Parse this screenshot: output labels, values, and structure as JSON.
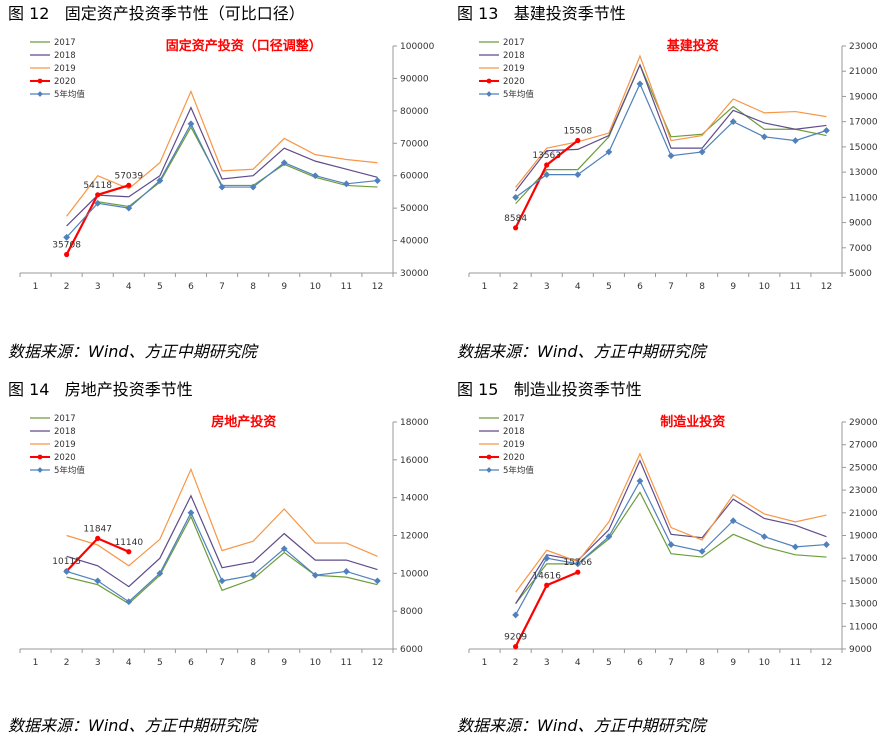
{
  "colors": {
    "2017": "#6e9c3c",
    "2018": "#5f4b8b",
    "2019": "#f79646",
    "2020": "#ff0000",
    "avg": "#4f81bd"
  },
  "source_text": "数据来源：Wind、方正中期研究院",
  "panels": [
    {
      "fig_title": "图 12   固定资产投资季节性（可比口径）",
      "chart_data": {
        "type": "line",
        "title": "固定资产投资（口径调整）",
        "categories": [
          "1",
          "2",
          "3",
          "4",
          "5",
          "6",
          "7",
          "8",
          "9",
          "10",
          "11",
          "12"
        ],
        "ylim": [
          30000,
          100000
        ],
        "yticks": [
          30000,
          40000,
          50000,
          60000,
          70000,
          80000,
          90000,
          100000
        ],
        "legend": [
          "2017",
          "2018",
          "2019",
          "2020",
          "5年均值"
        ],
        "series": [
          {
            "name": "2017",
            "key": "2017",
            "values": [
              null,
              null,
              52000,
              50500,
              58000,
              75000,
              57000,
              57000,
              63500,
              59500,
              57000,
              56500
            ]
          },
          {
            "name": "2018",
            "key": "2018",
            "values": [
              null,
              44500,
              54000,
              53500,
              60000,
              81000,
              59000,
              60000,
              68500,
              64500,
              62000,
              59500
            ]
          },
          {
            "name": "2019",
            "key": "2019",
            "values": [
              null,
              47500,
              60000,
              56000,
              64000,
              86000,
              61500,
              62000,
              71500,
              66500,
              65000,
              64000
            ]
          },
          {
            "name": "2020",
            "key": "2020",
            "values": [
              null,
              35708,
              54118,
              57039,
              null,
              null,
              null,
              null,
              null,
              null,
              null,
              null
            ]
          },
          {
            "name": "5年均值",
            "key": "avg",
            "values": [
              null,
              41000,
              51500,
              50000,
              58500,
              76000,
              56500,
              56500,
              64000,
              60000,
              57500,
              58500
            ]
          }
        ],
        "data_labels": [
          {
            "x": "2",
            "y": 35708,
            "text": "35708"
          },
          {
            "x": "3",
            "y": 54118,
            "text": "54118"
          },
          {
            "x": "4",
            "y": 57039,
            "text": "57039"
          }
        ]
      }
    },
    {
      "fig_title": "图 13   基建投资季节性",
      "chart_data": {
        "type": "line",
        "title": "基建投资",
        "categories": [
          "1",
          "2",
          "3",
          "4",
          "5",
          "6",
          "7",
          "8",
          "9",
          "10",
          "11",
          "12"
        ],
        "ylim": [
          5000,
          23000
        ],
        "yticks": [
          5000,
          7000,
          9000,
          11000,
          13000,
          15000,
          17000,
          19000,
          21000,
          23000
        ],
        "legend": [
          "2017",
          "2018",
          "2019",
          "2020",
          "5年均值"
        ],
        "series": [
          {
            "name": "2017",
            "key": "2017",
            "values": [
              null,
              10500,
              13200,
              13200,
              15800,
              21500,
              15800,
              16000,
              18200,
              16400,
              16400,
              15900
            ]
          },
          {
            "name": "2018",
            "key": "2018",
            "values": [
              null,
              11500,
              14700,
              14800,
              15900,
              21500,
              14900,
              14900,
              17900,
              16900,
              16400,
              16700
            ]
          },
          {
            "name": "2019",
            "key": "2019",
            "values": [
              null,
              11800,
              14900,
              15400,
              16100,
              22200,
              15500,
              15900,
              18800,
              17700,
              17800,
              17400
            ]
          },
          {
            "name": "2020",
            "key": "2020",
            "values": [
              null,
              8584,
              13563,
              15508,
              null,
              null,
              null,
              null,
              null,
              null,
              null,
              null
            ]
          },
          {
            "name": "5年均值",
            "key": "avg",
            "values": [
              null,
              11000,
              12800,
              12800,
              14600,
              20000,
              14300,
              14600,
              17000,
              15800,
              15500,
              16300
            ]
          }
        ],
        "data_labels": [
          {
            "x": "2",
            "y": 8584,
            "text": "8584"
          },
          {
            "x": "3",
            "y": 13563,
            "text": "13563"
          },
          {
            "x": "4",
            "y": 15508,
            "text": "15508"
          }
        ]
      }
    },
    {
      "fig_title": "图 14   房地产投资季节性",
      "chart_data": {
        "type": "line",
        "title": "房地产投资",
        "categories": [
          "1",
          "2",
          "3",
          "4",
          "5",
          "6",
          "7",
          "8",
          "9",
          "10",
          "11",
          "12"
        ],
        "ylim": [
          6000,
          18000
        ],
        "yticks": [
          6000,
          8000,
          10000,
          12000,
          14000,
          16000,
          18000
        ],
        "legend": [
          "2017",
          "2018",
          "2019",
          "2020",
          "5年均值"
        ],
        "series": [
          {
            "name": "2017",
            "key": "2017",
            "values": [
              null,
              9800,
              9400,
              8400,
              9900,
              13000,
              9100,
              9700,
              11100,
              9900,
              9800,
              9400
            ]
          },
          {
            "name": "2018",
            "key": "2018",
            "values": [
              null,
              10900,
              10400,
              9300,
              10800,
              14100,
              10300,
              10600,
              12100,
              10700,
              10700,
              10200
            ]
          },
          {
            "name": "2019",
            "key": "2019",
            "values": [
              null,
              12000,
              11500,
              10400,
              11800,
              15500,
              11200,
              11700,
              13400,
              11600,
              11600,
              10900
            ]
          },
          {
            "name": "2020",
            "key": "2020",
            "values": [
              null,
              10115,
              11847,
              11140,
              null,
              null,
              null,
              null,
              null,
              null,
              null,
              null
            ]
          },
          {
            "name": "5年均值",
            "key": "avg",
            "values": [
              null,
              10100,
              9600,
              8500,
              10000,
              13200,
              9600,
              9900,
              11300,
              9900,
              10100,
              9600
            ]
          }
        ],
        "data_labels": [
          {
            "x": "2",
            "y": 10115,
            "text": "10115"
          },
          {
            "x": "3",
            "y": 11847,
            "text": "11847"
          },
          {
            "x": "4",
            "y": 11140,
            "text": "11140"
          }
        ]
      }
    },
    {
      "fig_title": "图 15   制造业投资季节性",
      "chart_data": {
        "type": "line",
        "title": "制造业投资",
        "categories": [
          "1",
          "2",
          "3",
          "4",
          "5",
          "6",
          "7",
          "8",
          "9",
          "10",
          "11",
          "12"
        ],
        "ylim": [
          9000,
          29000
        ],
        "yticks": [
          9000,
          11000,
          13000,
          15000,
          17000,
          19000,
          21000,
          23000,
          25000,
          27000,
          29000
        ],
        "legend": [
          "2017",
          "2018",
          "2019",
          "2020",
          "5年均值"
        ],
        "series": [
          {
            "name": "2017",
            "key": "2017",
            "values": [
              null,
              13000,
              16500,
              16500,
              18700,
              22800,
              17400,
              17100,
              19100,
              18000,
              17300,
              17100
            ]
          },
          {
            "name": "2018",
            "key": "2018",
            "values": [
              null,
              13000,
              17300,
              16800,
              19500,
              25600,
              19100,
              18800,
              22200,
              20500,
              19900,
              18900
            ]
          },
          {
            "name": "2019",
            "key": "2019",
            "values": [
              null,
              14000,
              17700,
              16700,
              20200,
              26200,
              19700,
              18600,
              22600,
              20900,
              20200,
              20800
            ]
          },
          {
            "name": "2020",
            "key": "2020",
            "values": [
              null,
              9209,
              14616,
              15766,
              null,
              null,
              null,
              null,
              null,
              null,
              null,
              null
            ]
          },
          {
            "name": "5年均值",
            "key": "avg",
            "values": [
              null,
              12000,
              17000,
              16500,
              18900,
              23800,
              18200,
              17600,
              20300,
              18900,
              18000,
              18200
            ]
          }
        ],
        "data_labels": [
          {
            "x": "2",
            "y": 9209,
            "text": "9209"
          },
          {
            "x": "3",
            "y": 14616,
            "text": "14616"
          },
          {
            "x": "4",
            "y": 15766,
            "text": "15766"
          }
        ]
      }
    }
  ]
}
